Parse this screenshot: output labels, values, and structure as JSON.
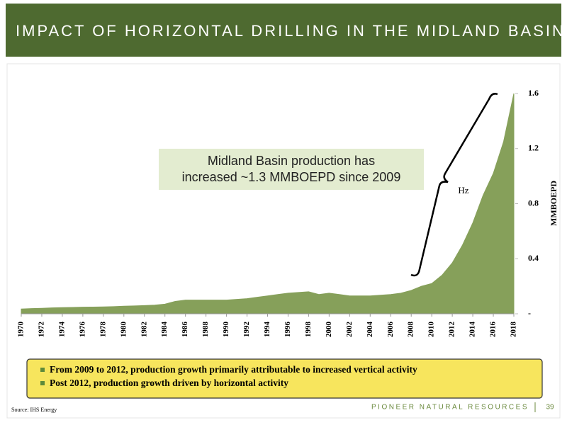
{
  "header": {
    "title": "IMPACT OF HORIZONTAL DRILLING IN THE MIDLAND BASIN"
  },
  "chart_data": {
    "type": "area",
    "x": [
      1970,
      1971,
      1972,
      1973,
      1974,
      1975,
      1976,
      1977,
      1978,
      1979,
      1980,
      1981,
      1982,
      1983,
      1984,
      1985,
      1986,
      1987,
      1988,
      1989,
      1990,
      1991,
      1992,
      1993,
      1994,
      1995,
      1996,
      1997,
      1998,
      1999,
      2000,
      2001,
      2002,
      2003,
      2004,
      2005,
      2006,
      2007,
      2008,
      2009,
      2010,
      2011,
      2012,
      2013,
      2014,
      2015,
      2016,
      2017,
      2018
    ],
    "values": [
      0.035,
      0.038,
      0.04,
      0.043,
      0.045,
      0.046,
      0.048,
      0.049,
      0.05,
      0.052,
      0.055,
      0.057,
      0.06,
      0.063,
      0.07,
      0.09,
      0.1,
      0.1,
      0.1,
      0.1,
      0.1,
      0.105,
      0.11,
      0.12,
      0.13,
      0.14,
      0.15,
      0.155,
      0.16,
      0.14,
      0.15,
      0.14,
      0.13,
      0.13,
      0.13,
      0.135,
      0.14,
      0.15,
      0.17,
      0.2,
      0.22,
      0.28,
      0.37,
      0.5,
      0.66,
      0.86,
      1.02,
      1.25,
      1.6
    ],
    "color": "#86a05a",
    "xlim": [
      1970,
      2018
    ],
    "xticks": [
      1970,
      1972,
      1974,
      1976,
      1978,
      1980,
      1982,
      1984,
      1986,
      1988,
      1990,
      1992,
      1994,
      1996,
      1998,
      2000,
      2002,
      2004,
      2006,
      2008,
      2010,
      2012,
      2014,
      2016,
      2018
    ],
    "ylim": [
      0,
      1.6
    ],
    "yticks": [
      {
        "value": 0,
        "label": "-"
      },
      0.4,
      0.8,
      1.2,
      1.6
    ],
    "y_label": "MMBOEPD",
    "annotation": [
      "Midland Basin production has",
      "increased ~1.3 MMBOEPD since 2009"
    ],
    "bracket_label": "Hz"
  },
  "notes": [
    "From 2009 to 2012, production growth primarily attributable to increased vertical activity",
    "Post 2012, production growth driven by horizontal activity"
  ],
  "source": "Source: IHS Energy",
  "footer": {
    "company": "PIONEER NATURAL RESOURCES",
    "page": "39"
  }
}
